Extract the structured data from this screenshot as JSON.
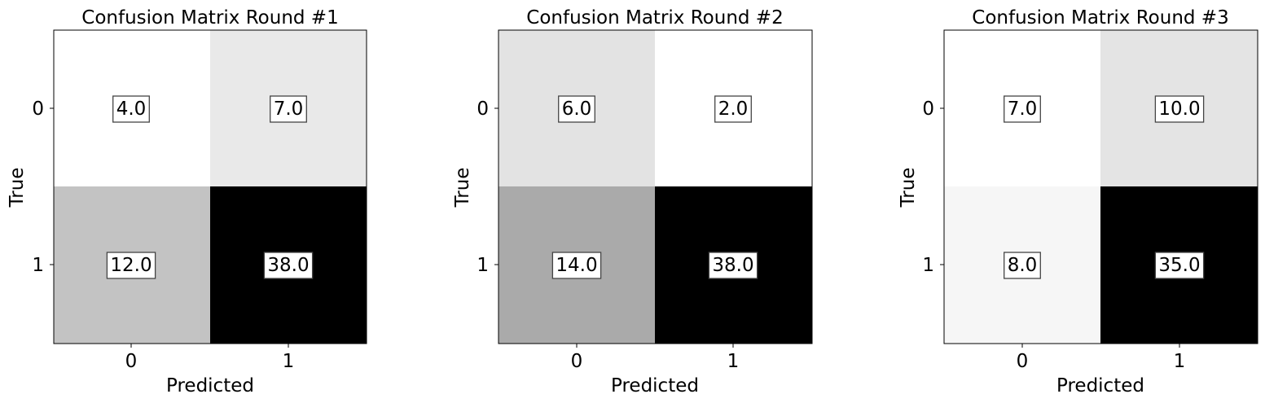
{
  "chart_data": [
    {
      "type": "heatmap",
      "title": "Confusion Matrix Round #1",
      "xlabel": "Predicted",
      "ylabel": "True",
      "x_categories": [
        "0",
        "1"
      ],
      "y_categories": [
        "0",
        "1"
      ],
      "values": [
        [
          4.0,
          7.0
        ],
        [
          12.0,
          38.0
        ]
      ],
      "value_labels": [
        [
          "4.0",
          "7.0"
        ],
        [
          "12.0",
          "38.0"
        ]
      ],
      "colormap": "greys"
    },
    {
      "type": "heatmap",
      "title": "Confusion Matrix Round #2",
      "xlabel": "Predicted",
      "ylabel": "True",
      "x_categories": [
        "0",
        "1"
      ],
      "y_categories": [
        "0",
        "1"
      ],
      "values": [
        [
          6.0,
          2.0
        ],
        [
          14.0,
          38.0
        ]
      ],
      "value_labels": [
        [
          "6.0",
          "2.0"
        ],
        [
          "14.0",
          "38.0"
        ]
      ],
      "colormap": "greys"
    },
    {
      "type": "heatmap",
      "title": "Confusion Matrix Round #3",
      "xlabel": "Predicted",
      "ylabel": "True",
      "x_categories": [
        "0",
        "1"
      ],
      "y_categories": [
        "0",
        "1"
      ],
      "values": [
        [
          7.0,
          10.0
        ],
        [
          8.0,
          35.0
        ]
      ],
      "value_labels": [
        [
          "7.0",
          "10.0"
        ],
        [
          "8.0",
          "35.0"
        ]
      ],
      "colormap": "greys"
    }
  ]
}
